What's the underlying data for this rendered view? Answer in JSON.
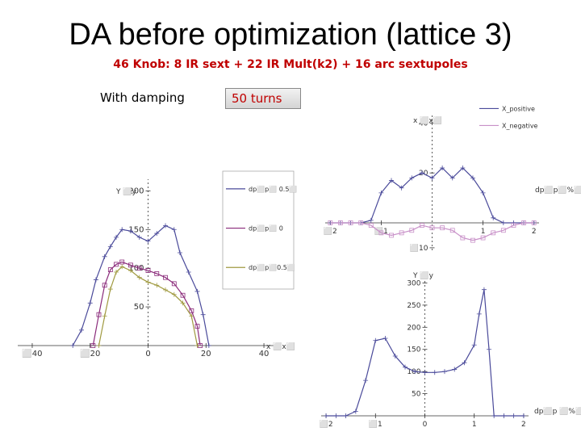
{
  "slide": {
    "title": "DA before optimization (lattice 3)",
    "subtitle": "46 Knob: 8 IR sext + 22 IR Mult(k2) + 16 arc sextupoles",
    "damping_label": "With damping",
    "turns_label": "50 turns"
  },
  "colors": {
    "subtitle": "#c00000",
    "series_blue": "#4a4a9a",
    "series_purple": "#8a2a7a",
    "series_olive": "#a09a40",
    "series_pink": "#c890c8"
  },
  "chart_data": [
    {
      "type": "line",
      "title": "",
      "xlabel": "x ⬜x⬜",
      "ylabel": "Y ⬜y",
      "xlim": [
        -45,
        45
      ],
      "ylim": [
        0,
        215
      ],
      "x_ticks": [
        {
          "v": -40,
          "label": "⬜40"
        },
        {
          "v": -20,
          "label": "⬜20"
        },
        {
          "v": 0,
          "label": "0"
        },
        {
          "v": 20,
          "label": "20"
        },
        {
          "v": 40,
          "label": "40"
        }
      ],
      "y_ticks": [
        {
          "v": 50,
          "label": "50"
        },
        {
          "v": 100,
          "label": "100"
        },
        {
          "v": 150,
          "label": "150"
        },
        {
          "v": 200,
          "label": "200"
        }
      ],
      "legend_position": "right",
      "series": [
        {
          "name": "dp⬜p⬜ 0.5⬜",
          "color": "#4a4a9a",
          "x": [
            -26,
            -23,
            -20,
            -18,
            -15,
            -13,
            -11,
            -9,
            -6,
            -3,
            0,
            3,
            6,
            9,
            11,
            14,
            17,
            19,
            21
          ],
          "y": [
            0,
            20,
            55,
            85,
            115,
            128,
            140,
            150,
            148,
            140,
            135,
            145,
            155,
            150,
            120,
            95,
            70,
            40,
            0
          ]
        },
        {
          "name": "dp⬜p⬜ 0",
          "color": "#8a2a7a",
          "x": [
            -19,
            -17,
            -15,
            -13,
            -11,
            -9,
            -6,
            -3,
            0,
            3,
            6,
            9,
            12,
            15,
            17,
            18
          ],
          "y": [
            0,
            40,
            78,
            98,
            105,
            108,
            104,
            100,
            97,
            93,
            88,
            80,
            65,
            45,
            25,
            0
          ]
        },
        {
          "name": "dp⬜p⬜0.5⬜",
          "color": "#a09a40",
          "x": [
            -17,
            -15,
            -13,
            -11,
            -9,
            -6,
            -3,
            0,
            3,
            6,
            9,
            12,
            15,
            17
          ],
          "y": [
            0,
            38,
            73,
            95,
            102,
            97,
            88,
            82,
            78,
            72,
            66,
            55,
            38,
            0
          ]
        }
      ]
    },
    {
      "type": "line",
      "title": "",
      "xlabel": "dp⬜p⬜%⬜",
      "ylabel": "x ⬜x⬜",
      "xlim": [
        -2.1,
        2.1
      ],
      "ylim": [
        -11,
        44
      ],
      "x_ticks": [
        {
          "v": -2,
          "label": "⬜2"
        },
        {
          "v": -1,
          "label": "⬜1"
        },
        {
          "v": 1,
          "label": "1"
        },
        {
          "v": 2,
          "label": "2"
        }
      ],
      "y_ticks": [
        {
          "v": -10,
          "label": "⬜10"
        },
        {
          "v": 20,
          "label": "20"
        },
        {
          "v": 40,
          "label": "40"
        }
      ],
      "legend_position": "top-right",
      "series": [
        {
          "name": "X_positive",
          "color": "#4a4a9a",
          "x": [
            -2,
            -1.8,
            -1.6,
            -1.4,
            -1.2,
            -1.0,
            -0.8,
            -0.6,
            -0.4,
            -0.2,
            0,
            0.2,
            0.4,
            0.6,
            0.8,
            1.0,
            1.2,
            1.4,
            1.6,
            1.8,
            2
          ],
          "y": [
            0,
            0,
            0,
            0,
            1,
            12,
            17,
            14,
            18,
            20,
            18,
            22,
            18,
            22,
            18,
            12,
            2,
            0,
            0,
            0,
            0
          ]
        },
        {
          "name": "X_negative",
          "color": "#c890c8",
          "x": [
            -2,
            -1.8,
            -1.6,
            -1.4,
            -1.2,
            -1.0,
            -0.8,
            -0.6,
            -0.4,
            -0.2,
            0,
            0.2,
            0.4,
            0.6,
            0.8,
            1.0,
            1.2,
            1.4,
            1.6,
            1.8,
            2
          ],
          "y": [
            0,
            0,
            0,
            0,
            -1,
            -4,
            -5,
            -4,
            -3,
            -1,
            -2,
            -2,
            -3,
            -6,
            -7,
            -6,
            -4,
            -3,
            -1,
            0,
            0
          ]
        }
      ]
    },
    {
      "type": "line",
      "title": "",
      "xlabel": "dp⬜p ⬜%⬜",
      "ylabel": "Y ⬜y",
      "xlim": [
        -2.1,
        2.1
      ],
      "ylim": [
        0,
        310
      ],
      "x_ticks": [
        {
          "v": -2,
          "label": "⬜2"
        },
        {
          "v": -1,
          "label": "⬜1"
        },
        {
          "v": 0,
          "label": "0"
        },
        {
          "v": 1,
          "label": "1"
        },
        {
          "v": 2,
          "label": "2"
        }
      ],
      "y_ticks": [
        {
          "v": 50,
          "label": "50"
        },
        {
          "v": 100,
          "label": "100"
        },
        {
          "v": 150,
          "label": "150"
        },
        {
          "v": 200,
          "label": "200"
        },
        {
          "v": 250,
          "label": "250"
        },
        {
          "v": 300,
          "label": "300"
        }
      ],
      "legend_position": "none",
      "series": [
        {
          "name": "",
          "color": "#4a4a9a",
          "x": [
            -2,
            -1.8,
            -1.6,
            -1.4,
            -1.2,
            -1.0,
            -0.8,
            -0.6,
            -0.4,
            -0.2,
            0,
            0.2,
            0.4,
            0.6,
            0.8,
            1.0,
            1.1,
            1.2,
            1.3,
            1.4,
            1.6,
            1.8,
            2
          ],
          "y": [
            0,
            0,
            0,
            10,
            80,
            170,
            175,
            135,
            110,
            100,
            98,
            98,
            100,
            105,
            120,
            160,
            230,
            285,
            150,
            0,
            0,
            0,
            0
          ]
        }
      ]
    }
  ]
}
